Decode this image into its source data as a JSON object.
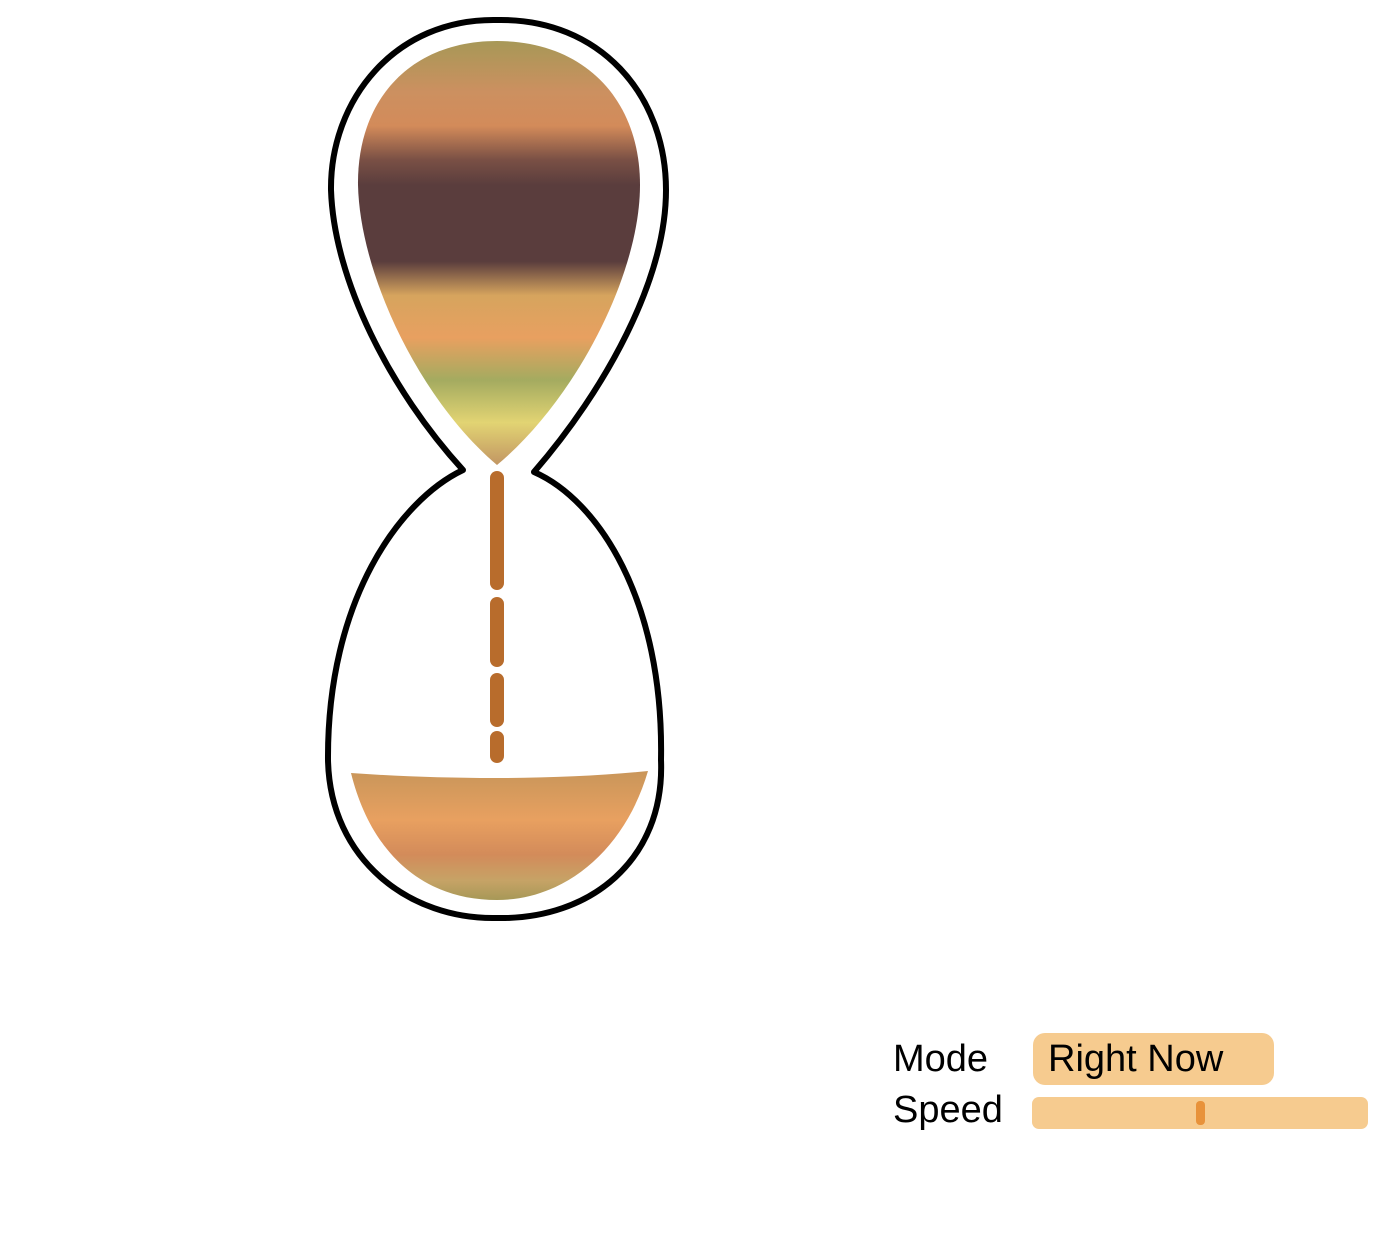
{
  "colors": {
    "outline": "#000000",
    "control_fill": "#f6cb8f",
    "slider_thumb": "#e8923a",
    "sand_stream": "#c9762e",
    "sand_bands": [
      "#a79857",
      "#d38b5a",
      "#5a3d3d",
      "#d6a45e",
      "#e8a060",
      "#a4ab60",
      "#e2d473",
      "#c29663"
    ]
  },
  "hourglass": {
    "icon": "hourglass-icon",
    "top_sand_level": 1.0,
    "bottom_sand_level": 0.22
  },
  "controls": {
    "mode_label": "Mode",
    "mode_value": "Right Now",
    "speed_label": "Speed",
    "speed_value": 0.5
  }
}
